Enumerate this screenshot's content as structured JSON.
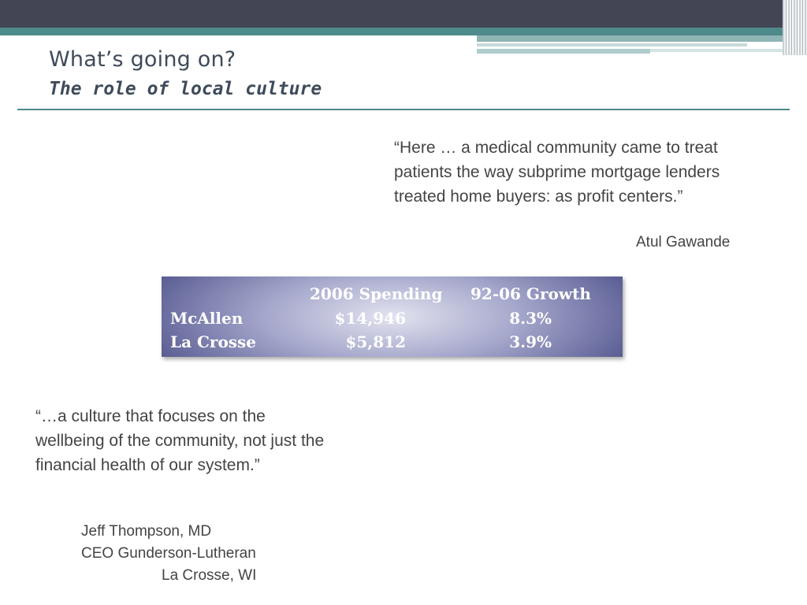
{
  "slide": {
    "title": "What’s going on?",
    "subtitle": "The role of local culture"
  },
  "quote_top": {
    "text": "“Here … a medical community came to treat patients the way subprime mortgage lenders treated home buyers:  as profit centers.”",
    "attribution": "Atul Gawande"
  },
  "table": {
    "headers": [
      "2006 Spending",
      "92-06 Growth"
    ],
    "rows": [
      {
        "label": "McAllen",
        "spending": "$14,946",
        "growth": "8.3%"
      },
      {
        "label": "La Crosse",
        "spending": "$5,812",
        "growth": "3.9%"
      }
    ]
  },
  "quote_bottom": {
    "text": " “…a culture that focuses on the wellbeing of the community, not just the financial health of our system.”",
    "attribution_lines": [
      "Jeff Thompson, MD",
      "CEO Gunderson-Lutheran",
      "La Crosse, WI"
    ]
  },
  "colors": {
    "header_bar": "#434555",
    "accent_teal": "#4e8a8a",
    "table_edge": "#4f528b",
    "table_center": "#e2e3ef",
    "text": "#444444"
  }
}
